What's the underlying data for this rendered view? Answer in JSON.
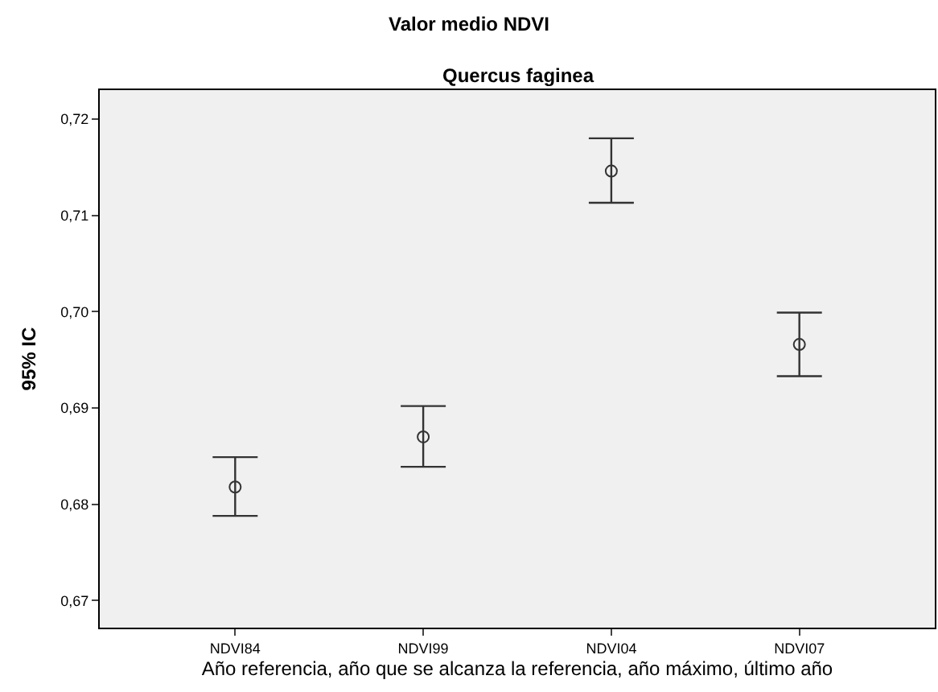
{
  "chart_data": {
    "type": "scatter",
    "title": "Valor medio NDVI",
    "subtitle": "Quercus faginea",
    "xlabel": "Año referencia, año que se alcanza la referencia, año máximo, último año",
    "ylabel": "95% IC",
    "categories": [
      "NDVI84",
      "NDVI99",
      "NDVI04",
      "NDVI07"
    ],
    "values": [
      0.6818,
      0.687,
      0.7146,
      0.6966
    ],
    "errors": [
      [
        0.6788,
        0.6849
      ],
      [
        0.6839,
        0.6902
      ],
      [
        0.7113,
        0.718
      ],
      [
        0.6933,
        0.6999
      ]
    ],
    "color": "#333333",
    "marker": "circle",
    "ylim": [
      0.6672,
      0.723
    ],
    "yticks": [
      {
        "value": 0.67,
        "label": "0,67"
      },
      {
        "value": 0.68,
        "label": "0,68"
      },
      {
        "value": 0.69,
        "label": "0,69"
      },
      {
        "value": 0.7,
        "label": "0,70"
      },
      {
        "value": 0.71,
        "label": "0,71"
      },
      {
        "value": 0.72,
        "label": "0,72"
      }
    ],
    "grid": false
  }
}
